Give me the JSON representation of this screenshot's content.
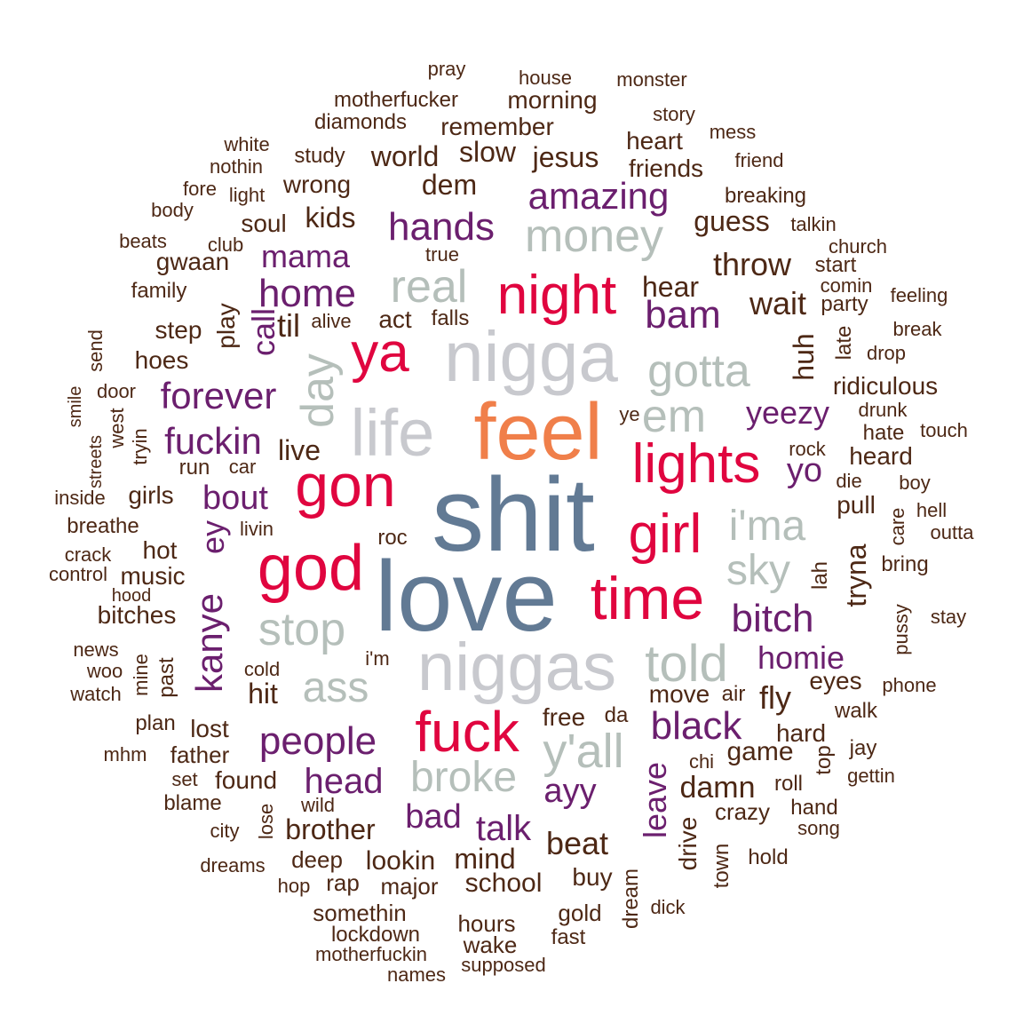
{
  "colors": {
    "top": "#627a94",
    "feel": "#f07f4a",
    "light_gray": "#c8c9ce",
    "sage": "#b5bfba",
    "red": "#e0053f",
    "purple": "#6b1f6e",
    "brown": "#4d2815"
  },
  "words": [
    {
      "text": "shit",
      "tier": "top"
    },
    {
      "text": "love",
      "tier": "top"
    },
    {
      "text": "feel",
      "tier": "feel"
    },
    {
      "text": "nigga",
      "tier": "light_gray"
    },
    {
      "text": "niggas",
      "tier": "light_gray"
    },
    {
      "text": "life",
      "tier": "light_gray"
    },
    {
      "text": "day",
      "tier": "sage"
    },
    {
      "text": "real",
      "tier": "sage"
    },
    {
      "text": "money",
      "tier": "sage"
    },
    {
      "text": "gotta",
      "tier": "sage"
    },
    {
      "text": "em",
      "tier": "sage"
    },
    {
      "text": "i'ma",
      "tier": "sage"
    },
    {
      "text": "sky",
      "tier": "sage"
    },
    {
      "text": "stop",
      "tier": "sage"
    },
    {
      "text": "ass",
      "tier": "sage"
    },
    {
      "text": "told",
      "tier": "sage"
    },
    {
      "text": "y'all",
      "tier": "sage"
    },
    {
      "text": "broke",
      "tier": "sage"
    },
    {
      "text": "night",
      "tier": "red"
    },
    {
      "text": "ya",
      "tier": "red"
    },
    {
      "text": "gon",
      "tier": "red"
    },
    {
      "text": "lights",
      "tier": "red"
    },
    {
      "text": "girl",
      "tier": "red"
    },
    {
      "text": "god",
      "tier": "red"
    },
    {
      "text": "time",
      "tier": "red"
    },
    {
      "text": "fuck",
      "tier": "red"
    },
    {
      "text": "amazing",
      "tier": "purple"
    },
    {
      "text": "hands",
      "tier": "purple"
    },
    {
      "text": "home",
      "tier": "purple"
    },
    {
      "text": "mama",
      "tier": "purple"
    },
    {
      "text": "bam",
      "tier": "purple"
    },
    {
      "text": "call",
      "tier": "purple"
    },
    {
      "text": "forever",
      "tier": "purple"
    },
    {
      "text": "fuckin",
      "tier": "purple"
    },
    {
      "text": "yeezy",
      "tier": "purple"
    },
    {
      "text": "yo",
      "tier": "purple"
    },
    {
      "text": "bout",
      "tier": "purple"
    },
    {
      "text": "ey",
      "tier": "purple"
    },
    {
      "text": "kanye",
      "tier": "purple"
    },
    {
      "text": "bitch",
      "tier": "purple"
    },
    {
      "text": "homie",
      "tier": "purple"
    },
    {
      "text": "black",
      "tier": "purple"
    },
    {
      "text": "people",
      "tier": "purple"
    },
    {
      "text": "head",
      "tier": "purple"
    },
    {
      "text": "bad",
      "tier": "purple"
    },
    {
      "text": "talk",
      "tier": "purple"
    },
    {
      "text": "ayy",
      "tier": "purple"
    },
    {
      "text": "leave",
      "tier": "purple"
    },
    {
      "text": "pray",
      "tier": "brown"
    },
    {
      "text": "house",
      "tier": "brown"
    },
    {
      "text": "monster",
      "tier": "brown"
    },
    {
      "text": "motherfucker",
      "tier": "brown"
    },
    {
      "text": "morning",
      "tier": "brown"
    },
    {
      "text": "diamonds",
      "tier": "brown"
    },
    {
      "text": "remember",
      "tier": "brown"
    },
    {
      "text": "story",
      "tier": "brown"
    },
    {
      "text": "white",
      "tier": "brown"
    },
    {
      "text": "study",
      "tier": "brown"
    },
    {
      "text": "world",
      "tier": "brown"
    },
    {
      "text": "slow",
      "tier": "brown"
    },
    {
      "text": "jesus",
      "tier": "brown"
    },
    {
      "text": "heart",
      "tier": "brown"
    },
    {
      "text": "mess",
      "tier": "brown"
    },
    {
      "text": "nothin",
      "tier": "brown"
    },
    {
      "text": "friend",
      "tier": "brown"
    },
    {
      "text": "friends",
      "tier": "brown"
    },
    {
      "text": "fore",
      "tier": "brown"
    },
    {
      "text": "light",
      "tier": "brown"
    },
    {
      "text": "wrong",
      "tier": "brown"
    },
    {
      "text": "dem",
      "tier": "brown"
    },
    {
      "text": "breaking",
      "tier": "brown"
    },
    {
      "text": "body",
      "tier": "brown"
    },
    {
      "text": "soul",
      "tier": "brown"
    },
    {
      "text": "kids",
      "tier": "brown"
    },
    {
      "text": "guess",
      "tier": "brown"
    },
    {
      "text": "talkin",
      "tier": "brown"
    },
    {
      "text": "beats",
      "tier": "brown"
    },
    {
      "text": "club",
      "tier": "brown"
    },
    {
      "text": "church",
      "tier": "brown"
    },
    {
      "text": "gwaan",
      "tier": "brown"
    },
    {
      "text": "true",
      "tier": "brown"
    },
    {
      "text": "throw",
      "tier": "brown"
    },
    {
      "text": "start",
      "tier": "brown"
    },
    {
      "text": "family",
      "tier": "brown"
    },
    {
      "text": "hear",
      "tier": "brown"
    },
    {
      "text": "comin",
      "tier": "brown"
    },
    {
      "text": "feeling",
      "tier": "brown"
    },
    {
      "text": "wait",
      "tier": "brown"
    },
    {
      "text": "party",
      "tier": "brown"
    },
    {
      "text": "play",
      "tier": "brown"
    },
    {
      "text": "til",
      "tier": "brown"
    },
    {
      "text": "alive",
      "tier": "brown"
    },
    {
      "text": "act",
      "tier": "brown"
    },
    {
      "text": "falls",
      "tier": "brown"
    },
    {
      "text": "step",
      "tier": "brown"
    },
    {
      "text": "send",
      "tier": "brown"
    },
    {
      "text": "break",
      "tier": "brown"
    },
    {
      "text": "late",
      "tier": "brown"
    },
    {
      "text": "huh",
      "tier": "brown"
    },
    {
      "text": "drop",
      "tier": "brown"
    },
    {
      "text": "hoes",
      "tier": "brown"
    },
    {
      "text": "door",
      "tier": "brown"
    },
    {
      "text": "smile",
      "tier": "brown"
    },
    {
      "text": "ridiculous",
      "tier": "brown"
    },
    {
      "text": "west",
      "tier": "brown"
    },
    {
      "text": "ye",
      "tier": "brown"
    },
    {
      "text": "drunk",
      "tier": "brown"
    },
    {
      "text": "hate",
      "tier": "brown"
    },
    {
      "text": "touch",
      "tier": "brown"
    },
    {
      "text": "tryin",
      "tier": "brown"
    },
    {
      "text": "streets",
      "tier": "brown"
    },
    {
      "text": "live",
      "tier": "brown"
    },
    {
      "text": "rock",
      "tier": "brown"
    },
    {
      "text": "heard",
      "tier": "brown"
    },
    {
      "text": "run",
      "tier": "brown"
    },
    {
      "text": "car",
      "tier": "brown"
    },
    {
      "text": "die",
      "tier": "brown"
    },
    {
      "text": "boy",
      "tier": "brown"
    },
    {
      "text": "inside",
      "tier": "brown"
    },
    {
      "text": "girls",
      "tier": "brown"
    },
    {
      "text": "pull",
      "tier": "brown"
    },
    {
      "text": "care",
      "tier": "brown"
    },
    {
      "text": "hell",
      "tier": "brown"
    },
    {
      "text": "outta",
      "tier": "brown"
    },
    {
      "text": "breathe",
      "tier": "brown"
    },
    {
      "text": "livin",
      "tier": "brown"
    },
    {
      "text": "roc",
      "tier": "brown"
    },
    {
      "text": "tryna",
      "tier": "brown"
    },
    {
      "text": "crack",
      "tier": "brown"
    },
    {
      "text": "hot",
      "tier": "brown"
    },
    {
      "text": "bring",
      "tier": "brown"
    },
    {
      "text": "control",
      "tier": "brown"
    },
    {
      "text": "music",
      "tier": "brown"
    },
    {
      "text": "lah",
      "tier": "brown"
    },
    {
      "text": "hood",
      "tier": "brown"
    },
    {
      "text": "bitches",
      "tier": "brown"
    },
    {
      "text": "stay",
      "tier": "brown"
    },
    {
      "text": "pussy",
      "tier": "brown"
    },
    {
      "text": "news",
      "tier": "brown"
    },
    {
      "text": "i'm",
      "tier": "brown"
    },
    {
      "text": "woo",
      "tier": "brown"
    },
    {
      "text": "mine",
      "tier": "brown"
    },
    {
      "text": "past",
      "tier": "brown"
    },
    {
      "text": "cold",
      "tier": "brown"
    },
    {
      "text": "eyes",
      "tier": "brown"
    },
    {
      "text": "phone",
      "tier": "brown"
    },
    {
      "text": "watch",
      "tier": "brown"
    },
    {
      "text": "hit",
      "tier": "brown"
    },
    {
      "text": "move",
      "tier": "brown"
    },
    {
      "text": "air",
      "tier": "brown"
    },
    {
      "text": "fly",
      "tier": "brown"
    },
    {
      "text": "walk",
      "tier": "brown"
    },
    {
      "text": "plan",
      "tier": "brown"
    },
    {
      "text": "lost",
      "tier": "brown"
    },
    {
      "text": "free",
      "tier": "brown"
    },
    {
      "text": "da",
      "tier": "brown"
    },
    {
      "text": "hard",
      "tier": "brown"
    },
    {
      "text": "mhm",
      "tier": "brown"
    },
    {
      "text": "father",
      "tier": "brown"
    },
    {
      "text": "chi",
      "tier": "brown"
    },
    {
      "text": "game",
      "tier": "brown"
    },
    {
      "text": "top",
      "tier": "brown"
    },
    {
      "text": "jay",
      "tier": "brown"
    },
    {
      "text": "set",
      "tier": "brown"
    },
    {
      "text": "found",
      "tier": "brown"
    },
    {
      "text": "damn",
      "tier": "brown"
    },
    {
      "text": "roll",
      "tier": "brown"
    },
    {
      "text": "gettin",
      "tier": "brown"
    },
    {
      "text": "blame",
      "tier": "brown"
    },
    {
      "text": "lose",
      "tier": "brown"
    },
    {
      "text": "wild",
      "tier": "brown"
    },
    {
      "text": "crazy",
      "tier": "brown"
    },
    {
      "text": "hand",
      "tier": "brown"
    },
    {
      "text": "city",
      "tier": "brown"
    },
    {
      "text": "brother",
      "tier": "brown"
    },
    {
      "text": "drive",
      "tier": "brown"
    },
    {
      "text": "song",
      "tier": "brown"
    },
    {
      "text": "beat",
      "tier": "brown"
    },
    {
      "text": "dreams",
      "tier": "brown"
    },
    {
      "text": "deep",
      "tier": "brown"
    },
    {
      "text": "lookin",
      "tier": "brown"
    },
    {
      "text": "mind",
      "tier": "brown"
    },
    {
      "text": "town",
      "tier": "brown"
    },
    {
      "text": "hold",
      "tier": "brown"
    },
    {
      "text": "hop",
      "tier": "brown"
    },
    {
      "text": "rap",
      "tier": "brown"
    },
    {
      "text": "major",
      "tier": "brown"
    },
    {
      "text": "school",
      "tier": "brown"
    },
    {
      "text": "buy",
      "tier": "brown"
    },
    {
      "text": "dream",
      "tier": "brown"
    },
    {
      "text": "somethin",
      "tier": "brown"
    },
    {
      "text": "gold",
      "tier": "brown"
    },
    {
      "text": "dick",
      "tier": "brown"
    },
    {
      "text": "hours",
      "tier": "brown"
    },
    {
      "text": "lockdown",
      "tier": "brown"
    },
    {
      "text": "fast",
      "tier": "brown"
    },
    {
      "text": "wake",
      "tier": "brown"
    },
    {
      "text": "motherfuckin",
      "tier": "brown"
    },
    {
      "text": "supposed",
      "tier": "brown"
    },
    {
      "text": "names",
      "tier": "brown"
    }
  ]
}
